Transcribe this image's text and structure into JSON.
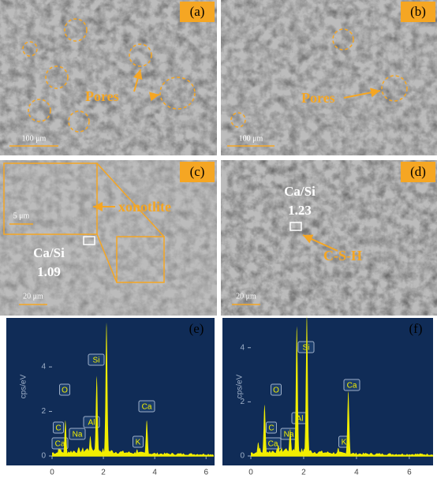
{
  "panels": [
    {
      "label": "(a)",
      "scale_bar": "100 μm",
      "annotation": "Pores"
    },
    {
      "label": "(b)",
      "scale_bar": "100 μm",
      "annotation": "Pores"
    },
    {
      "label": "(c)",
      "scale_bar": "20 μm",
      "inset_scale_bar": "5 μm",
      "annotation": "xonotlite",
      "ratio_label": "Ca/Si",
      "ratio": 1.09
    },
    {
      "label": "(d)",
      "scale_bar": "20 μm",
      "annotation": "C-S-H",
      "ratio_label": "Ca/Si",
      "ratio": 1.23
    }
  ],
  "chart_data": [
    {
      "type": "spectrum",
      "label": "(e)",
      "y_label": "cps/eV",
      "color": "#f2ee00",
      "xlim": [
        0,
        6.3
      ],
      "xticks": [
        0,
        2,
        4,
        6
      ],
      "ylim": [
        0,
        6.2
      ],
      "yticks": [
        0,
        2,
        4
      ],
      "x": [
        0.28,
        0.34,
        0.52,
        1.04,
        1.49,
        1.74,
        2.12,
        3.31,
        3.69
      ],
      "values": [
        0.6,
        0.3,
        1.6,
        0.4,
        0.9,
        3.6,
        6.0,
        0.3,
        1.6
      ],
      "peak_labels": [
        "C",
        "Ca",
        "O",
        "Na",
        "Al",
        "Si",
        null,
        "K",
        "Ca"
      ]
    },
    {
      "type": "spectrum",
      "label": "(f)",
      "y_label": "cps/eV",
      "color": "#f2ee00",
      "xlim": [
        0,
        6.9
      ],
      "xticks": [
        0,
        2,
        4,
        6
      ],
      "ylim": [
        0,
        5.1
      ],
      "yticks": [
        0,
        2,
        4
      ],
      "x": [
        0.28,
        0.34,
        0.52,
        1.04,
        1.49,
        1.74,
        2.12,
        3.31,
        3.69
      ],
      "values": [
        0.5,
        0.3,
        1.9,
        0.4,
        1.0,
        4.8,
        5.2,
        0.3,
        2.4
      ],
      "peak_labels": [
        "C",
        "Ca",
        "O",
        "Na",
        "Al",
        "Si",
        null,
        "K",
        "Ca"
      ]
    }
  ]
}
